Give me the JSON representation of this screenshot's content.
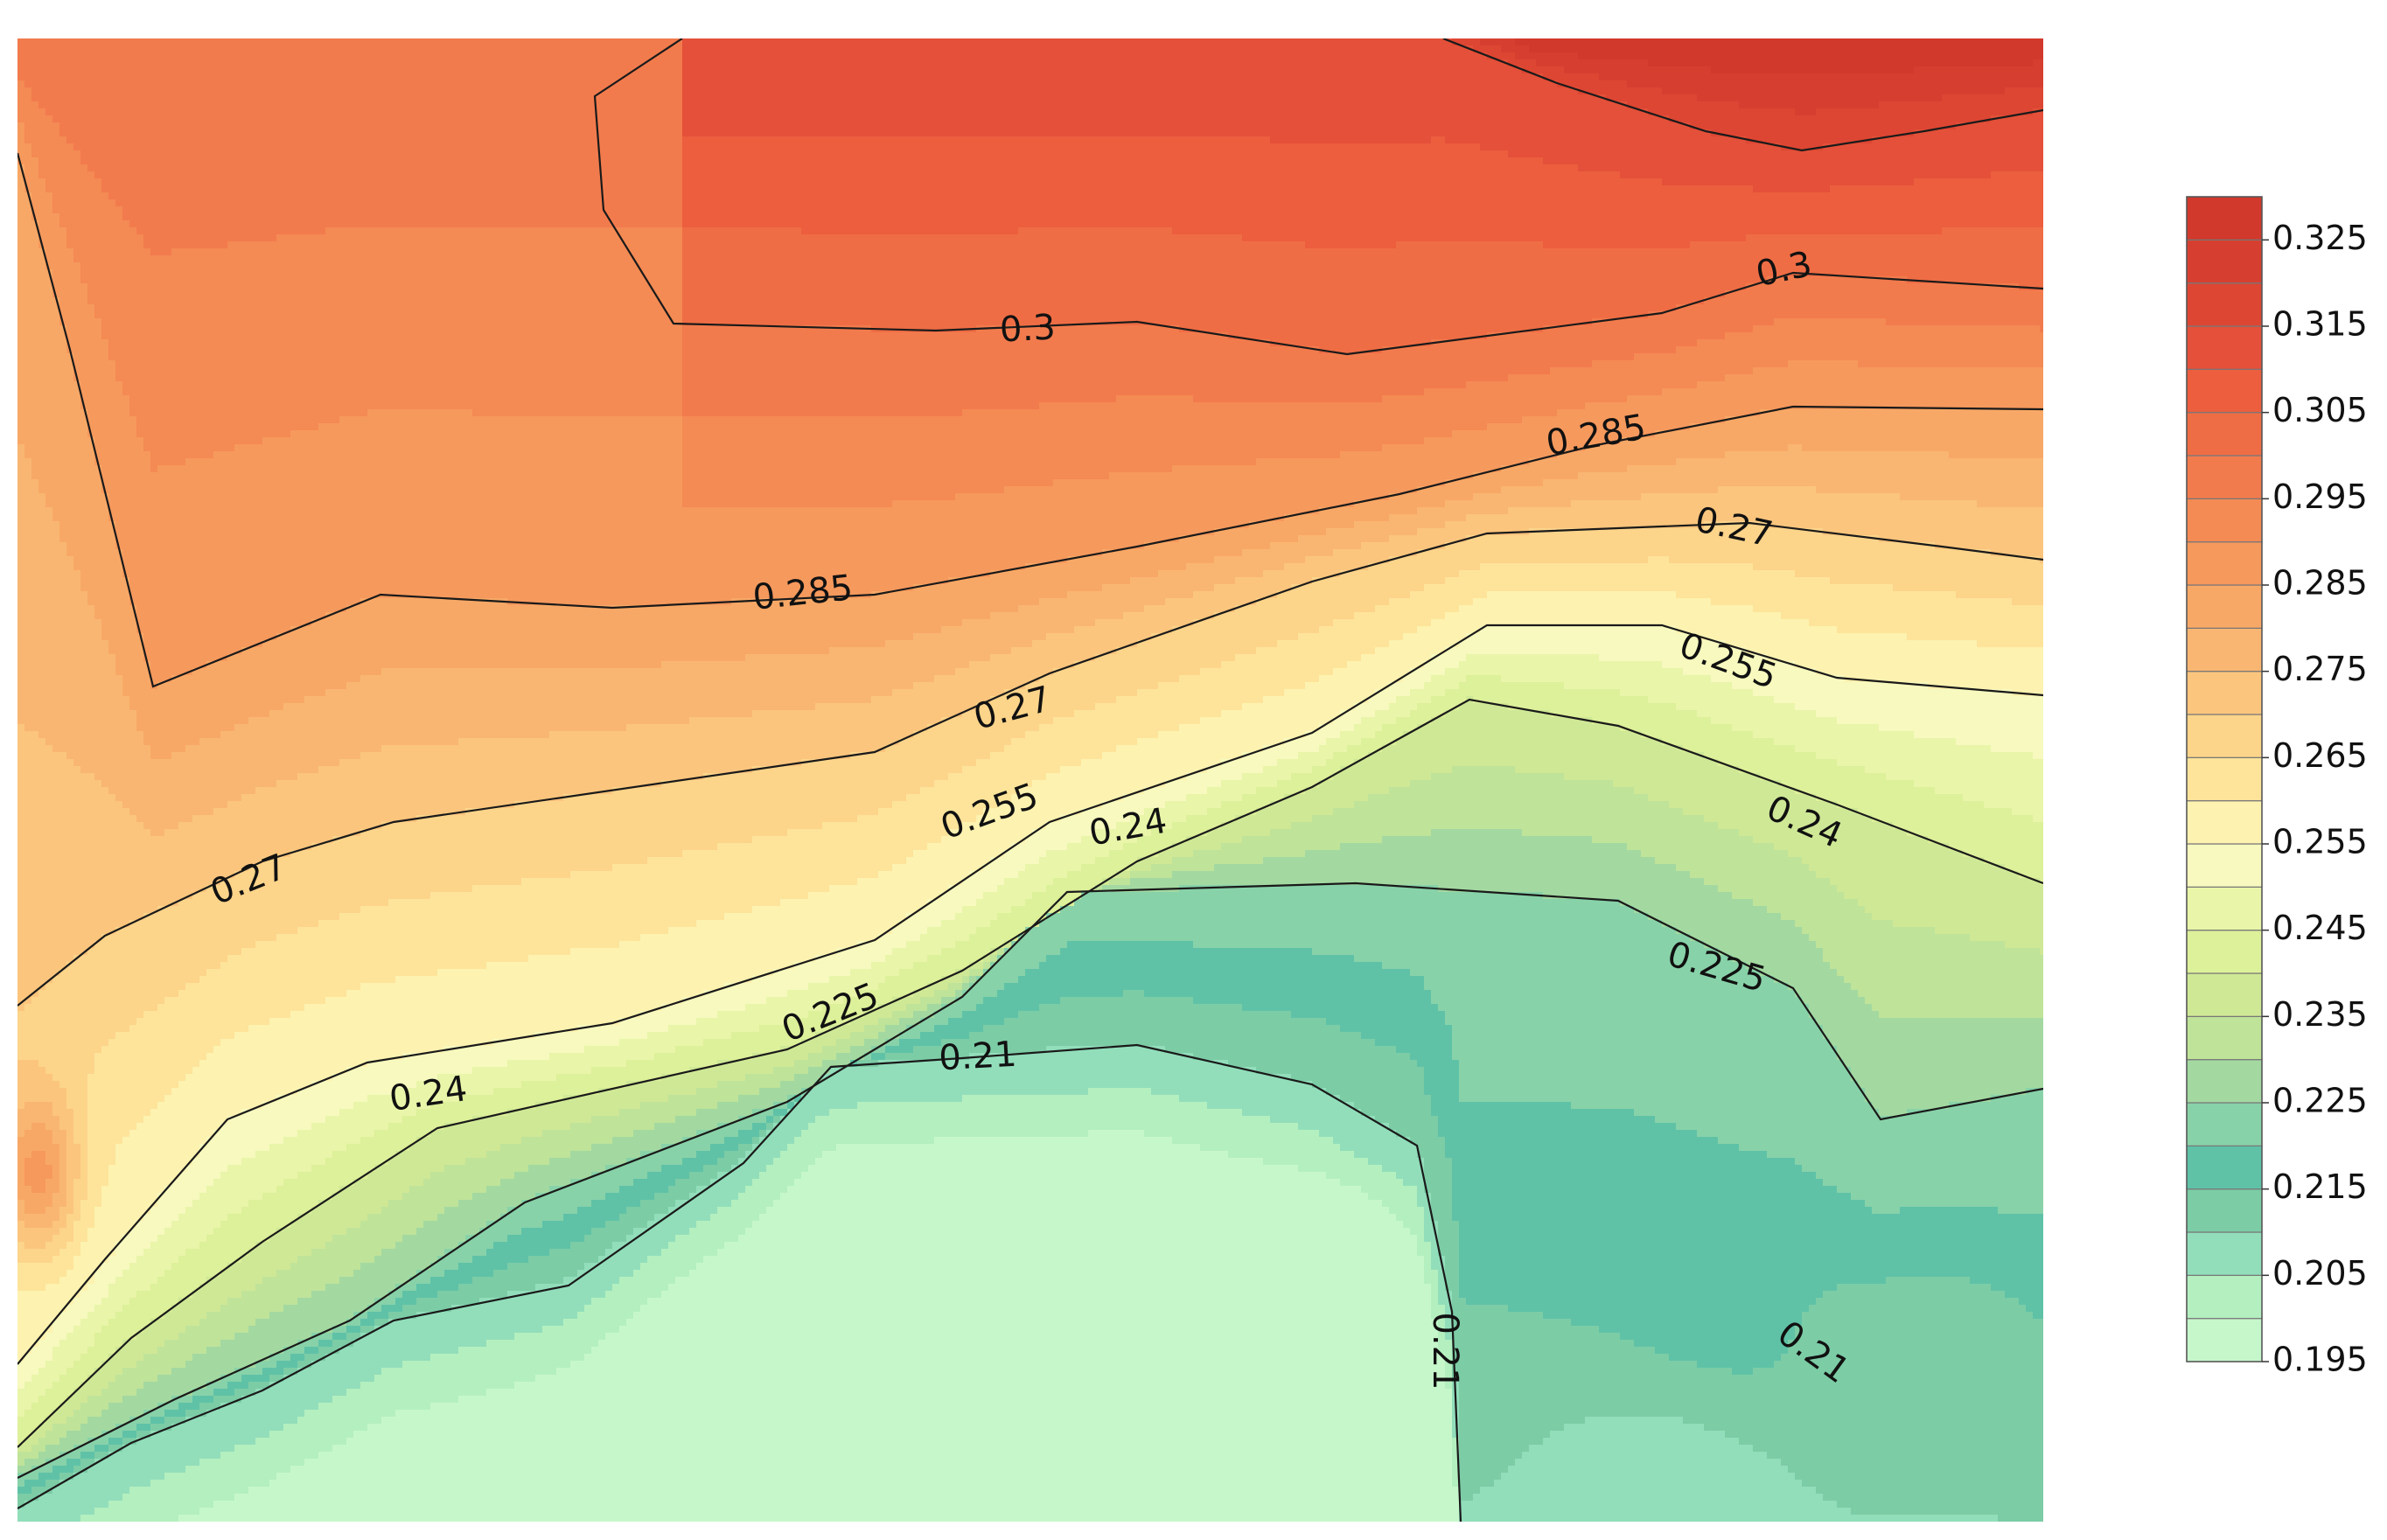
{
  "chart_data": {
    "type": "contour",
    "title": "",
    "xlabel": "",
    "ylabel": "",
    "colorbar": {
      "levels": [
        0.195,
        0.2,
        0.205,
        0.21,
        0.215,
        0.22,
        0.225,
        0.23,
        0.235,
        0.24,
        0.245,
        0.25,
        0.255,
        0.26,
        0.265,
        0.27,
        0.275,
        0.28,
        0.285,
        0.29,
        0.295,
        0.3,
        0.305,
        0.31,
        0.315,
        0.32,
        0.325,
        0.33
      ],
      "tick_labels": [
        "0.195",
        "0.205",
        "0.215",
        "0.225",
        "0.235",
        "0.245",
        "0.255",
        "0.265",
        "0.275",
        "0.285",
        "0.295",
        "0.305",
        "0.315",
        "0.325"
      ],
      "colors": [
        "#c6f7cb",
        "#b4efbf",
        "#92debb",
        "#7ccca6",
        "#5fc2a7",
        "#88d2a9",
        "#a3d9a1",
        "#bfe399",
        "#cfe896",
        "#ddf09a",
        "#e9f5a9",
        "#f7f9be",
        "#fdf2b0",
        "#fde49a",
        "#fcd48a",
        "#fbc57d",
        "#f9b673",
        "#f8a866",
        "#f6995d",
        "#f48a54",
        "#f27b4d",
        "#ef6d45",
        "#ec5e3e",
        "#e45039",
        "#dd4633",
        "#d63f2f",
        "#d1392c"
      ]
    },
    "contour_labels": [
      "0.3",
      "0.3",
      "0.285",
      "0.285",
      "0.27",
      "0.27",
      "0.27",
      "0.255",
      "0.255",
      "0.24",
      "0.24",
      "0.24",
      "0.225",
      "0.225",
      "0.21",
      "0.21",
      "0.21"
    ],
    "z_range": [
      0.195,
      0.33
    ],
    "grid": false,
    "legend": "colorbar-right"
  }
}
